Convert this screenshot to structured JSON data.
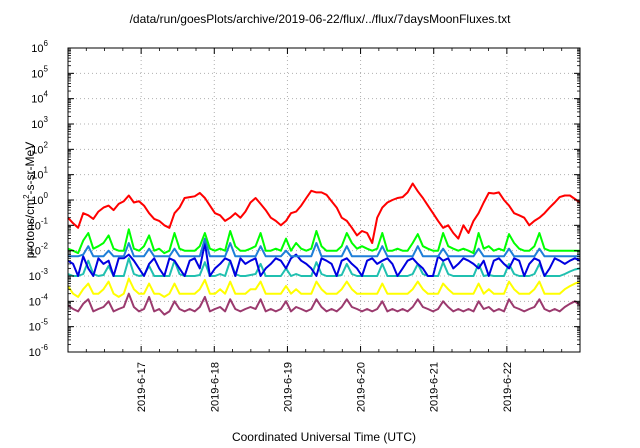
{
  "chart_data": {
    "type": "line",
    "title": "/data/run/goesPlots/archive/2019-06-22/flux/../flux/7daysMoonFluxes.txt",
    "xlabel": "Coordinated Universal Time (UTC)",
    "ylabel": "protons/cm2-s-sr-MeV",
    "ylabel_parts": {
      "base": "protons/cm",
      "sup": "2",
      "rest": "-s-sr-MeV"
    },
    "yscale": "log",
    "xlim": [
      "2019-06-16 00:00",
      "2019-06-23 00:00"
    ],
    "ylim_exponents": [
      -6,
      6
    ],
    "y_ticks": [
      {
        "base": "10",
        "exp": "-6"
      },
      {
        "base": "10",
        "exp": "-5"
      },
      {
        "base": "10",
        "exp": "-4"
      },
      {
        "base": "10",
        "exp": "-3"
      },
      {
        "base": "10",
        "exp": "-2"
      },
      {
        "base": "10",
        "exp": "-1"
      },
      {
        "base": "10",
        "exp": "0"
      },
      {
        "base": "10",
        "exp": "1"
      },
      {
        "base": "10",
        "exp": "2"
      },
      {
        "base": "10",
        "exp": "3"
      },
      {
        "base": "10",
        "exp": "4"
      },
      {
        "base": "10",
        "exp": "5"
      },
      {
        "base": "10",
        "exp": "6"
      }
    ],
    "x_ticks": [
      "2019-6-17",
      "2019-6-18",
      "2019-6-19",
      "2019-6-20",
      "2019-6-21",
      "2019-6-22"
    ],
    "grid": true,
    "x_day_start": "2019-06-16",
    "series": [
      {
        "color": "#ff0000",
        "values": [
          0.2,
          0.12,
          0.08,
          0.3,
          0.25,
          0.18,
          0.35,
          0.5,
          0.6,
          0.4,
          0.7,
          0.9,
          1.5,
          0.8,
          0.9,
          0.6,
          0.3,
          0.18,
          0.15,
          0.1,
          0.08,
          0.3,
          0.5,
          1.2,
          1.3,
          1.4,
          1.9,
          1.2,
          0.6,
          0.3,
          0.25,
          0.15,
          0.2,
          0.3,
          0.2,
          0.35,
          0.8,
          1.2,
          0.7,
          0.4,
          0.2,
          0.15,
          0.1,
          0.15,
          0.3,
          0.35,
          0.6,
          1.2,
          2.3,
          2.0,
          2.0,
          1.6,
          0.9,
          0.5,
          0.2,
          0.15,
          0.08,
          0.04,
          0.06,
          0.05,
          0.02,
          0.2,
          0.5,
          0.8,
          1.0,
          1.2,
          1.3,
          2.0,
          4.5,
          2.2,
          1.2,
          0.6,
          0.3,
          0.15,
          0.08,
          0.1,
          0.05,
          0.03,
          0.1,
          0.05,
          0.15,
          0.3,
          0.8,
          1.9,
          1.8,
          2.0,
          1.0,
          0.6,
          0.3,
          0.25,
          0.2,
          0.1,
          0.15,
          0.2,
          0.3,
          0.5,
          0.8,
          1.3,
          1.5,
          1.5,
          1.1,
          0.8
        ]
      },
      {
        "color": "#00ff00",
        "values": [
          0.012,
          0.01,
          0.008,
          0.025,
          0.05,
          0.012,
          0.015,
          0.02,
          0.04,
          0.012,
          0.01,
          0.01,
          0.07,
          0.012,
          0.01,
          0.015,
          0.04,
          0.01,
          0.012,
          0.008,
          0.01,
          0.05,
          0.012,
          0.01,
          0.01,
          0.01,
          0.015,
          0.05,
          0.012,
          0.01,
          0.012,
          0.01,
          0.06,
          0.015,
          0.01,
          0.01,
          0.012,
          0.015,
          0.05,
          0.01,
          0.01,
          0.012,
          0.01,
          0.03,
          0.01,
          0.02,
          0.012,
          0.01,
          0.012,
          0.06,
          0.015,
          0.01,
          0.01,
          0.01,
          0.015,
          0.05,
          0.02,
          0.012,
          0.015,
          0.012,
          0.01,
          0.012,
          0.05,
          0.01,
          0.01,
          0.012,
          0.01,
          0.01,
          0.02,
          0.045,
          0.015,
          0.012,
          0.01,
          0.01,
          0.05,
          0.015,
          0.012,
          0.01,
          0.012,
          0.01,
          0.008,
          0.05,
          0.012,
          0.015,
          0.01,
          0.012,
          0.01,
          0.045,
          0.02,
          0.012,
          0.01,
          0.01,
          0.015,
          0.05,
          0.012,
          0.01,
          0.01,
          0.01,
          0.01,
          0.01,
          0.01,
          0.01
        ]
      },
      {
        "color": "#1e7fd8",
        "values": [
          0.006,
          0.006,
          0.006,
          0.007,
          0.015,
          0.006,
          0.006,
          0.006,
          0.01,
          0.006,
          0.006,
          0.006,
          0.02,
          0.006,
          0.006,
          0.006,
          0.012,
          0.006,
          0.006,
          0.006,
          0.006,
          0.012,
          0.006,
          0.006,
          0.006,
          0.006,
          0.006,
          0.03,
          0.006,
          0.006,
          0.006,
          0.006,
          0.02,
          0.006,
          0.006,
          0.006,
          0.006,
          0.006,
          0.015,
          0.006,
          0.006,
          0.006,
          0.006,
          0.01,
          0.006,
          0.006,
          0.006,
          0.006,
          0.006,
          0.02,
          0.006,
          0.006,
          0.006,
          0.006,
          0.006,
          0.015,
          0.006,
          0.006,
          0.006,
          0.006,
          0.006,
          0.006,
          0.015,
          0.006,
          0.006,
          0.006,
          0.006,
          0.006,
          0.006,
          0.015,
          0.006,
          0.006,
          0.006,
          0.006,
          0.012,
          0.006,
          0.006,
          0.006,
          0.006,
          0.006,
          0.006,
          0.012,
          0.006,
          0.006,
          0.006,
          0.006,
          0.006,
          0.012,
          0.006,
          0.006,
          0.006,
          0.006,
          0.006,
          0.012,
          0.006,
          0.006,
          0.006,
          0.006,
          0.006,
          0.006,
          0.006,
          0.006
        ]
      },
      {
        "color": "#0000e0",
        "values": [
          0.004,
          0.003,
          0.001,
          0.006,
          0.002,
          0.001,
          0.005,
          0.003,
          0.004,
          0.001,
          0.005,
          0.005,
          0.007,
          0.004,
          0.002,
          0.001,
          0.003,
          0.005,
          0.002,
          0.001,
          0.005,
          0.004,
          0.002,
          0.001,
          0.004,
          0.005,
          0.002,
          0.02,
          0.001,
          0.002,
          0.003,
          0.005,
          0.004,
          0.001,
          0.005,
          0.003,
          0.004,
          0.005,
          0.001,
          0.002,
          0.003,
          0.005,
          0.004,
          0.002,
          0.005,
          0.007,
          0.004,
          0.003,
          0.002,
          0.001,
          0.005,
          0.004,
          0.003,
          0.001,
          0.004,
          0.005,
          0.003,
          0.002,
          0.001,
          0.004,
          0.005,
          0.003,
          0.004,
          0.005,
          0.003,
          0.001,
          0.002,
          0.004,
          0.005,
          0.003,
          0.002,
          0.001,
          0.001,
          0.006,
          0.004,
          0.005,
          0.002,
          0.003,
          0.005,
          0.004,
          0.003,
          0.002,
          0.004,
          0.001,
          0.004,
          0.005,
          0.003,
          0.002,
          0.005,
          0.004,
          0.001,
          0.003,
          0.005,
          0.004,
          0.001,
          0.002,
          0.005,
          0.004,
          0.003,
          0.004,
          0.005,
          0.004
        ]
      },
      {
        "color": "#20c0b0",
        "values": [
          0.0012,
          0.001,
          0.001,
          0.0012,
          0.004,
          0.0012,
          0.001,
          0.0011,
          0.0025,
          0.001,
          0.001,
          0.001,
          0.005,
          0.0012,
          0.001,
          0.0011,
          0.0025,
          0.001,
          0.001,
          0.001,
          0.001,
          0.004,
          0.0012,
          0.001,
          0.001,
          0.001,
          0.0011,
          0.0035,
          0.001,
          0.001,
          0.0012,
          0.001,
          0.004,
          0.0012,
          0.001,
          0.001,
          0.0011,
          0.0012,
          0.003,
          0.001,
          0.001,
          0.001,
          0.001,
          0.002,
          0.001,
          0.0012,
          0.001,
          0.001,
          0.001,
          0.0035,
          0.0012,
          0.001,
          0.001,
          0.001,
          0.0011,
          0.003,
          0.0012,
          0.001,
          0.001,
          0.001,
          0.001,
          0.001,
          0.003,
          0.001,
          0.001,
          0.001,
          0.001,
          0.001,
          0.0012,
          0.003,
          0.0012,
          0.001,
          0.001,
          0.001,
          0.0035,
          0.0012,
          0.001,
          0.001,
          0.001,
          0.001,
          0.001,
          0.003,
          0.001,
          0.0011,
          0.001,
          0.001,
          0.001,
          0.003,
          0.0012,
          0.001,
          0.001,
          0.001,
          0.0012,
          0.003,
          0.001,
          0.001,
          0.001,
          0.001,
          0.0012,
          0.0015,
          0.0018,
          0.002
        ]
      },
      {
        "color": "#ffff00",
        "values": [
          0.0004,
          0.0002,
          0.00015,
          0.0003,
          0.0005,
          0.0002,
          0.0002,
          0.0003,
          0.0006,
          0.0002,
          0.00015,
          0.0002,
          0.0008,
          0.0003,
          0.0002,
          0.0002,
          0.0005,
          0.0002,
          0.0002,
          0.00015,
          0.0002,
          0.0005,
          0.0002,
          0.0002,
          0.0002,
          0.0002,
          0.0003,
          0.0007,
          0.0002,
          0.0002,
          0.0003,
          0.0002,
          0.0006,
          0.0002,
          0.0002,
          0.0002,
          0.0003,
          0.0003,
          0.0006,
          0.0002,
          0.0002,
          0.0002,
          0.0002,
          0.0004,
          0.0002,
          0.0003,
          0.0002,
          0.0002,
          0.0002,
          0.0006,
          0.0003,
          0.0002,
          0.0002,
          0.0002,
          0.0003,
          0.0006,
          0.0003,
          0.0002,
          0.0002,
          0.0002,
          0.0002,
          0.0002,
          0.0005,
          0.0002,
          0.0002,
          0.0002,
          0.0002,
          0.0002,
          0.0003,
          0.0006,
          0.0003,
          0.0002,
          0.0002,
          0.0002,
          0.0005,
          0.0003,
          0.0002,
          0.0002,
          0.0002,
          0.0002,
          0.0002,
          0.0005,
          0.0002,
          0.0003,
          0.0002,
          0.0002,
          0.0002,
          0.0006,
          0.0003,
          0.0002,
          0.0002,
          0.0002,
          0.0003,
          0.0006,
          0.0002,
          0.0002,
          0.0002,
          0.0002,
          0.0003,
          0.0004,
          0.0005,
          0.0006
        ]
      },
      {
        "color": "#9b3a6e",
        "values": [
          7e-05,
          5e-05,
          4e-05,
          8e-05,
          0.00012,
          4e-05,
          5e-05,
          6e-05,
          0.0001,
          4e-05,
          5e-05,
          6e-05,
          0.0002,
          6e-05,
          4e-05,
          5e-05,
          0.00015,
          4e-05,
          5e-05,
          3e-05,
          4e-05,
          0.0001,
          5e-05,
          4e-05,
          5e-05,
          4e-05,
          6e-05,
          0.00015,
          4e-05,
          5e-05,
          6e-05,
          4e-05,
          0.00012,
          5e-05,
          4e-05,
          5e-05,
          6e-05,
          5e-05,
          0.00012,
          4e-05,
          5e-05,
          4e-05,
          5e-05,
          0.0001,
          4e-05,
          6e-05,
          5e-05,
          4e-05,
          5e-05,
          0.00012,
          6e-05,
          4e-05,
          5e-05,
          4e-05,
          6e-05,
          0.00012,
          6e-05,
          5e-05,
          4e-05,
          5e-05,
          4e-05,
          5e-05,
          0.0001,
          4e-05,
          5e-05,
          4e-05,
          5e-05,
          4e-05,
          6e-05,
          0.00012,
          6e-05,
          5e-05,
          4e-05,
          5e-05,
          0.0001,
          6e-05,
          4e-05,
          5e-05,
          4e-05,
          5e-05,
          4e-05,
          0.0001,
          5e-05,
          6e-05,
          4e-05,
          5e-05,
          4e-05,
          0.00012,
          6e-05,
          5e-05,
          4e-05,
          5e-05,
          6e-05,
          0.00012,
          5e-05,
          4e-05,
          5e-05,
          4e-05,
          6e-05,
          8e-05,
          0.0001,
          7e-05
        ]
      }
    ]
  }
}
